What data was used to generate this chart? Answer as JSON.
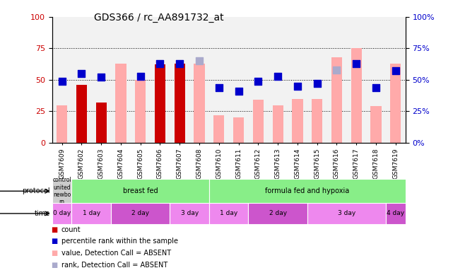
{
  "title": "GDS366 / rc_AA891732_at",
  "samples": [
    "GSM7609",
    "GSM7602",
    "GSM7603",
    "GSM7604",
    "GSM7605",
    "GSM7606",
    "GSM7607",
    "GSM7608",
    "GSM7610",
    "GSM7611",
    "GSM7612",
    "GSM7613",
    "GSM7614",
    "GSM7615",
    "GSM7616",
    "GSM7617",
    "GSM7618",
    "GSM7619"
  ],
  "red_bars": [
    0,
    46,
    32,
    0,
    0,
    62,
    63,
    0,
    0,
    0,
    0,
    0,
    0,
    0,
    0,
    0,
    0,
    0
  ],
  "pink_bars": [
    30,
    0,
    0,
    63,
    50,
    0,
    0,
    63,
    22,
    20,
    34,
    30,
    35,
    35,
    68,
    75,
    29,
    63
  ],
  "blue_squares": [
    49,
    55,
    52,
    0,
    53,
    63,
    63,
    0,
    44,
    41,
    49,
    53,
    45,
    47,
    0,
    63,
    44,
    57
  ],
  "light_blue_squares": [
    0,
    0,
    0,
    0,
    0,
    0,
    0,
    65,
    0,
    0,
    0,
    0,
    0,
    0,
    58,
    0,
    0,
    0
  ],
  "ylim": [
    0,
    100
  ],
  "yticks": [
    0,
    25,
    50,
    75,
    100
  ],
  "color_red": "#cc0000",
  "color_pink": "#ffaaaa",
  "color_blue": "#0000cc",
  "color_light_blue": "#aaaacc",
  "bar_width": 0.55,
  "blue_sq_size": 45,
  "background_color": "#f2f2f2"
}
